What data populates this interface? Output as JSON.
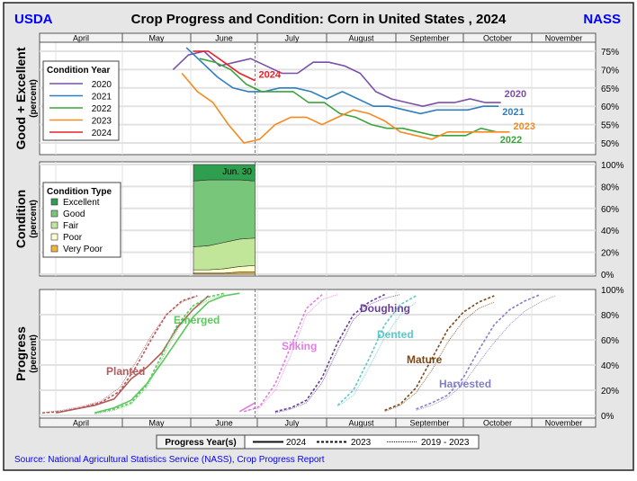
{
  "header": {
    "left": "USDA",
    "title": "Crop Progress and Condition: Corn in United States , 2024",
    "right": "NASS"
  },
  "months": [
    "April",
    "May",
    "June",
    "July",
    "August",
    "September",
    "October",
    "November"
  ],
  "source": "Source: National Agricultural Statistics Service (NASS), Crop Progress Report",
  "colors": {
    "brand": "#0000ff"
  },
  "chart_data": [
    {
      "type": "line",
      "title": "Good + Excellent",
      "ylabel": "Good + Excellent",
      "ylabel_sub": "(percent)",
      "ylim": [
        48,
        78
      ],
      "yticks": [
        50,
        55,
        60,
        65,
        70,
        75
      ],
      "tick_suffix": "%",
      "legend_title": "Condition Year",
      "legend_position": "top-left",
      "current_date": "06-30",
      "series": [
        {
          "name": "2020",
          "color": "#7b4ea8",
          "start": "05-24",
          "values": [
            70,
            74,
            75,
            71,
            72,
            73,
            71,
            69,
            69,
            72,
            72,
            71,
            69,
            64,
            62,
            61,
            60,
            61,
            61,
            62,
            61,
            61
          ]
        },
        {
          "name": "2021",
          "color": "#2e7fbf",
          "start": "05-30",
          "values": [
            76,
            72,
            68,
            65,
            64,
            64,
            65,
            65,
            64,
            62,
            64,
            62,
            60,
            60,
            59,
            58,
            59,
            59,
            59,
            60,
            60
          ]
        },
        {
          "name": "2022",
          "color": "#3ca33c",
          "start": "06-05",
          "values": [
            73,
            72,
            70,
            66,
            64,
            64,
            64,
            61,
            61,
            58,
            57,
            55,
            54,
            54,
            53,
            52,
            52,
            52,
            54,
            53
          ]
        },
        {
          "name": "2023",
          "color": "#f58a1f",
          "start": "05-28",
          "values": [
            69,
            64,
            61,
            55,
            50,
            51,
            55,
            57,
            57,
            55,
            57,
            59,
            58,
            56,
            53,
            52,
            51,
            53,
            53,
            53,
            53,
            53
          ]
        },
        {
          "name": "2024",
          "color": "#e8202a",
          "start": "06-02",
          "values": [
            75,
            75,
            72,
            69,
            67
          ]
        }
      ]
    },
    {
      "type": "area",
      "title": "Condition",
      "ylabel": "Condition",
      "ylabel_sub": "(percent)",
      "ylim": [
        0,
        100
      ],
      "yticks": [
        0,
        20,
        40,
        60,
        80,
        100
      ],
      "tick_suffix": "%",
      "legend_title": "Condition Type",
      "legend_position": "top-left",
      "date_label": "Jun. 30",
      "start": "06-02",
      "series": [
        {
          "name": "Excellent",
          "color": "#2e9e4f",
          "values": [
            15,
            14,
            14,
            14,
            15
          ]
        },
        {
          "name": "Good",
          "color": "#78c679",
          "values": [
            60,
            60,
            57,
            54,
            52
          ]
        },
        {
          "name": "Fair",
          "color": "#c2e699",
          "values": [
            21,
            22,
            24,
            25,
            25
          ]
        },
        {
          "name": "Poor",
          "color": "#ffffcc",
          "values": [
            3,
            3,
            4,
            5,
            6
          ]
        },
        {
          "name": "Very Poor",
          "color": "#f0b43c",
          "values": [
            1,
            1,
            1,
            2,
            2
          ]
        }
      ]
    },
    {
      "type": "line",
      "title": "Progress",
      "ylabel": "Progress",
      "ylabel_sub": "(percent)",
      "ylim": [
        0,
        100
      ],
      "yticks": [
        0,
        20,
        40,
        60,
        80,
        100
      ],
      "tick_suffix": "%",
      "legend_title": "Progress Year(s)",
      "legend_position": "bottom",
      "legend_entries": [
        "2024",
        "2023",
        "2019 - 2023"
      ],
      "stages": [
        {
          "name": "Planted",
          "color": "#b55a5a",
          "y2024": {
            "start": "04-07",
            "values": [
              2,
              5,
              8,
              13,
              29,
              38,
              50,
              70,
              84,
              95
            ]
          },
          "y2023": {
            "start": "04-02",
            "values": [
              2,
              3,
              6,
              10,
              19,
              38,
              60,
              80,
              91,
              95
            ]
          },
          "avg": {
            "start": "04-02",
            "values": [
              2,
              4,
              7,
              11,
              22,
              42,
              63,
              80,
              90,
              95
            ]
          }
        },
        {
          "name": "Emerged",
          "color": "#5cc85c",
          "y2024": {
            "start": "04-21",
            "values": [
              2,
              6,
              12,
              25,
              42,
              60,
              78,
              90,
              95,
              97
            ]
          },
          "y2023": {
            "start": "04-21",
            "values": [
              2,
              5,
              10,
              24,
              48,
              72,
              87,
              94,
              97
            ]
          },
          "avg": {
            "start": "04-21",
            "values": [
              1,
              4,
              9,
              22,
              45,
              68,
              84,
              92,
              96
            ]
          }
        },
        {
          "name": "Silking",
          "color": "#e07ee0",
          "y2024": {
            "start": "06-23",
            "values": [
              3,
              10
            ]
          },
          "y2023": {
            "start": "06-25",
            "values": [
              3,
              7,
              25,
              55,
              85,
              96
            ]
          },
          "avg": {
            "start": "06-25",
            "values": [
              3,
              6,
              20,
              48,
              80,
              92,
              96
            ]
          }
        },
        {
          "name": "Doughing",
          "color": "#6a3d9a",
          "y2023": {
            "start": "07-09",
            "values": [
              3,
              6,
              12,
              30,
              58,
              80,
              90,
              96
            ]
          },
          "avg": {
            "start": "07-09",
            "values": [
              2,
              5,
              10,
              26,
              52,
              76,
              88,
              93,
              96
            ]
          }
        },
        {
          "name": "Dented",
          "color": "#5cc8c8",
          "y2023": {
            "start": "08-06",
            "values": [
              8,
              20,
              45,
              72,
              88,
              95
            ]
          },
          "avg": {
            "start": "08-06",
            "values": [
              7,
              16,
              38,
              62,
              80,
              90
            ]
          }
        },
        {
          "name": "Mature",
          "color": "#7a4a1a",
          "y2023": {
            "start": "08-27",
            "values": [
              4,
              9,
              22,
              45,
              68,
              82,
              90,
              95
            ]
          },
          "avg": {
            "start": "08-27",
            "values": [
              3,
              8,
              18,
              36,
              58,
              75,
              85,
              90
            ]
          }
        },
        {
          "name": "Harvested",
          "color": "#8080c8",
          "y2023": {
            "start": "09-10",
            "values": [
              5,
              10,
              16,
              30,
              52,
              72,
              84,
              91,
              96
            ]
          },
          "avg": {
            "start": "09-10",
            "values": [
              4,
              8,
              14,
              25,
              42,
              58,
              72,
              83,
              90,
              95
            ]
          }
        }
      ]
    }
  ]
}
